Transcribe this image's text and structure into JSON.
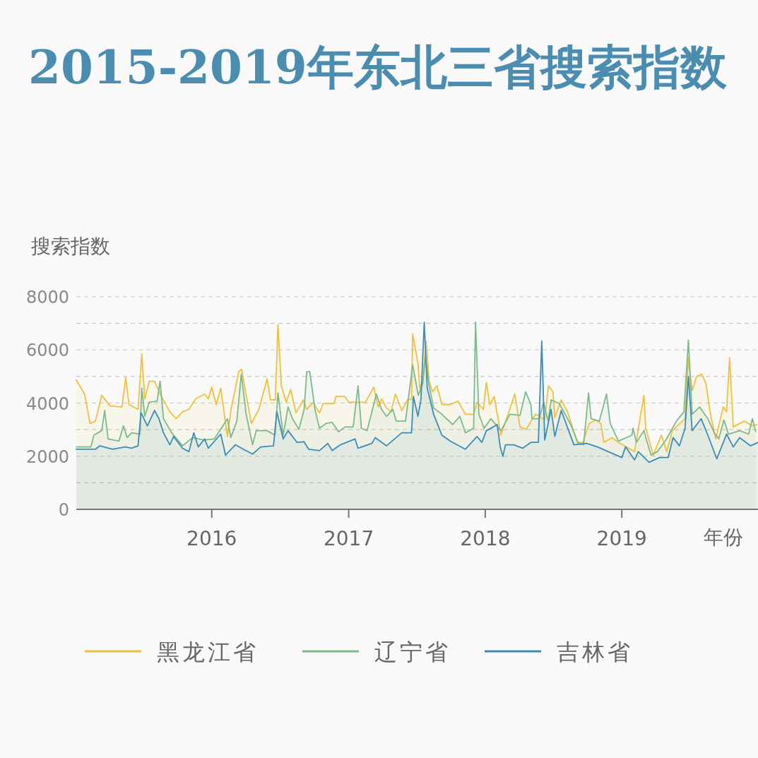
{
  "chart_data": {
    "type": "area",
    "title": "2015-2019年东北三省搜索指数",
    "xlabel": "年份",
    "ylabel": "搜索指数",
    "xlim": [
      "2015-01-04",
      "2019-12-31"
    ],
    "ylim": [
      0,
      8000
    ],
    "xticks": [
      {
        "value": "2016-01-01",
        "label": "2016"
      },
      {
        "value": "2017-01-01",
        "label": "2017"
      },
      {
        "value": "2018-01-01",
        "label": "2018"
      },
      {
        "value": "2019-01-01",
        "label": "2019"
      }
    ],
    "yticks": [
      0,
      {
        "value": 1000,
        "label": null
      },
      2000,
      {
        "value": 3000,
        "label": null
      },
      4000,
      {
        "value": 5000,
        "label": null
      },
      6000,
      {
        "value": 7000,
        "label": null
      },
      8000
    ],
    "grid": "y",
    "legend": "bottom",
    "line_style": "solid",
    "series": [
      {
        "name": "黑龙江省",
        "color": "#f0c03c",
        "x": [
          "2015-01-04",
          "2015-01-26",
          "2015-02-10",
          "2015-02-24",
          "2015-03-13",
          "2015-04-04",
          "2015-05-06",
          "2015-05-16",
          "2015-05-25",
          "2015-06-18",
          "2015-06-28",
          "2015-07-06",
          "2015-07-18",
          "2015-08-01",
          "2015-08-18",
          "2015-09-11",
          "2015-09-28",
          "2015-10-15",
          "2015-11-01",
          "2015-11-19",
          "2015-12-13",
          "2015-12-23",
          "2016-01-01",
          "2016-01-13",
          "2016-01-25",
          "2016-02-12",
          "2016-02-21",
          "2016-03-13",
          "2016-03-21",
          "2016-04-02",
          "2016-04-16",
          "2016-05-06",
          "2016-05-28",
          "2016-06-06",
          "2016-06-19",
          "2016-06-26",
          "2016-07-05",
          "2016-07-18",
          "2016-07-30",
          "2016-08-13",
          "2016-09-02",
          "2016-09-11",
          "2016-09-28",
          "2016-10-15",
          "2016-10-25",
          "2016-11-23",
          "2016-11-28",
          "2016-12-22",
          "2017-01-01",
          "2017-02-15",
          "2017-03-09",
          "2017-03-21",
          "2017-03-30",
          "2017-04-12",
          "2017-04-24",
          "2017-05-06",
          "2017-05-23",
          "2017-06-09",
          "2017-06-18",
          "2017-06-21",
          "2017-07-05",
          "2017-07-10",
          "2017-07-18",
          "2017-07-27",
          "2017-08-04",
          "2017-08-13",
          "2017-08-25",
          "2017-09-07",
          "2017-09-29",
          "2017-10-20",
          "2017-11-09",
          "2017-12-01",
          "2017-12-10",
          "2017-12-27",
          "2018-01-04",
          "2018-01-13",
          "2018-01-25",
          "2018-02-12",
          "2018-03-01",
          "2018-03-21",
          "2018-04-04",
          "2018-04-21",
          "2018-05-03",
          "2018-05-16",
          "2018-06-09",
          "2018-06-19",
          "2018-07-01",
          "2018-07-06",
          "2018-07-23",
          "2018-08-09",
          "2018-09-04",
          "2018-09-19",
          "2018-10-06",
          "2018-10-23",
          "2018-11-06",
          "2018-11-14",
          "2018-12-06",
          "2018-12-23",
          "2019-02-04",
          "2019-03-01",
          "2019-03-06",
          "2019-03-26",
          "2019-04-17",
          "2019-05-01",
          "2019-05-16",
          "2019-06-19",
          "2019-06-28",
          "2019-07-08",
          "2019-07-20",
          "2019-08-03",
          "2019-08-14",
          "2019-08-26",
          "2019-09-09",
          "2019-09-29",
          "2019-10-08",
          "2019-10-16",
          "2019-10-26",
          "2019-11-24",
          "2019-12-16",
          "2019-12-28"
        ],
        "values": [
          4870,
          4340,
          3230,
          3320,
          4290,
          3890,
          3850,
          4960,
          3940,
          3760,
          5840,
          4160,
          4820,
          4820,
          4290,
          3670,
          3410,
          3670,
          3760,
          4160,
          4340,
          4160,
          4600,
          3940,
          4560,
          2740,
          3720,
          5180,
          5270,
          4290,
          3230,
          3760,
          4910,
          4120,
          4120,
          6950,
          4650,
          4030,
          4510,
          3630,
          4120,
          3760,
          4030,
          3630,
          3980,
          3980,
          4250,
          4250,
          4030,
          4030,
          4600,
          3850,
          4160,
          3810,
          3670,
          4340,
          3720,
          4160,
          4120,
          6590,
          5530,
          4560,
          4820,
          6330,
          4820,
          4420,
          4650,
          3940,
          3940,
          4070,
          3580,
          3580,
          4030,
          3760,
          4780,
          3940,
          4250,
          2790,
          3500,
          4340,
          3100,
          3010,
          3320,
          3580,
          3360,
          4650,
          4420,
          3450,
          4120,
          3670,
          2520,
          2520,
          3230,
          3360,
          3230,
          2520,
          2700,
          2520,
          2170,
          4290,
          3050,
          2040,
          2790,
          2170,
          2960,
          3410,
          5710,
          4470,
          5000,
          5090,
          4730,
          3580,
          2650,
          3850,
          3670,
          5710,
          3100,
          3320,
          3140,
          3190
        ]
      },
      {
        "name": "辽宁省",
        "color": "#7dba8a",
        "x": [
          "2015-01-04",
          "2015-02-12",
          "2015-02-20",
          "2015-03-13",
          "2015-03-21",
          "2015-03-30",
          "2015-04-28",
          "2015-05-10",
          "2015-05-20",
          "2015-06-01",
          "2015-06-23",
          "2015-06-28",
          "2015-07-06",
          "2015-07-18",
          "2015-08-08",
          "2015-08-16",
          "2015-08-25",
          "2015-09-16",
          "2015-10-15",
          "2015-11-11",
          "2015-12-10",
          "2016-01-08",
          "2016-02-12",
          "2016-02-21",
          "2016-03-08",
          "2016-03-20",
          "2016-04-02",
          "2016-04-19",
          "2016-04-29",
          "2016-05-28",
          "2016-06-18",
          "2016-06-26",
          "2016-07-10",
          "2016-07-23",
          "2016-08-04",
          "2016-08-21",
          "2016-09-04",
          "2016-09-11",
          "2016-09-19",
          "2016-10-03",
          "2016-10-15",
          "2016-11-01",
          "2016-11-18",
          "2016-12-05",
          "2016-12-22",
          "2017-01-13",
          "2017-01-26",
          "2017-02-04",
          "2017-02-19",
          "2017-03-04",
          "2017-03-16",
          "2017-03-30",
          "2017-04-12",
          "2017-04-29",
          "2017-05-08",
          "2017-06-02",
          "2017-06-21",
          "2017-07-06",
          "2017-07-18",
          "2017-07-25",
          "2017-08-04",
          "2017-08-16",
          "2017-09-07",
          "2017-10-06",
          "2017-10-25",
          "2017-11-09",
          "2017-12-01",
          "2017-12-06",
          "2017-12-15",
          "2017-12-29",
          "2018-01-16",
          "2018-02-12",
          "2018-03-08",
          "2018-04-04",
          "2018-04-19",
          "2018-05-03",
          "2018-05-06",
          "2018-05-25",
          "2018-06-06",
          "2018-06-18",
          "2018-06-26",
          "2018-07-18",
          "2018-08-16",
          "2018-09-07",
          "2018-09-21",
          "2018-10-04",
          "2018-10-11",
          "2018-11-02",
          "2018-11-21",
          "2018-12-01",
          "2018-12-23",
          "2019-01-28",
          "2019-01-31",
          "2019-02-09",
          "2019-03-01",
          "2019-03-20",
          "2019-04-06",
          "2019-04-29",
          "2019-05-27",
          "2019-06-16",
          "2019-06-28",
          "2019-07-08",
          "2019-07-28",
          "2019-08-19",
          "2019-09-05",
          "2019-09-17",
          "2019-10-01",
          "2019-10-13",
          "2019-11-12",
          "2019-12-06",
          "2019-12-16",
          "2019-12-25"
        ],
        "values": [
          2350,
          2350,
          2790,
          2960,
          3720,
          2650,
          2570,
          3140,
          2700,
          2880,
          2830,
          4560,
          3500,
          4030,
          4070,
          4820,
          3410,
          2880,
          2390,
          2700,
          2610,
          2650,
          3410,
          2700,
          3320,
          5090,
          3580,
          2430,
          2960,
          2960,
          2790,
          4380,
          2790,
          3850,
          3410,
          3010,
          3760,
          5180,
          5180,
          3760,
          3050,
          3230,
          3270,
          2920,
          3100,
          3100,
          4650,
          3050,
          2960,
          3670,
          4340,
          3760,
          3500,
          3760,
          3320,
          3320,
          5440,
          4290,
          4730,
          5750,
          4650,
          3810,
          3580,
          3190,
          3500,
          2880,
          3050,
          7040,
          3580,
          3050,
          3410,
          2960,
          3580,
          3540,
          4420,
          3940,
          3410,
          3410,
          4030,
          3320,
          4120,
          3980,
          3230,
          2480,
          2430,
          4380,
          3410,
          3320,
          4340,
          3230,
          2570,
          2790,
          3050,
          2520,
          2960,
          2040,
          2170,
          2610,
          3320,
          3670,
          6370,
          3580,
          3850,
          3410,
          2880,
          2650,
          3360,
          2830,
          2960,
          2830,
          3410,
          2920
        ]
      },
      {
        "name": "吉林省",
        "color": "#3a8db8",
        "x": [
          "2015-01-04",
          "2015-02-24",
          "2015-03-08",
          "2015-04-11",
          "2015-05-15",
          "2015-06-01",
          "2015-06-18",
          "2015-06-26",
          "2015-07-13",
          "2015-08-01",
          "2015-08-13",
          "2015-08-25",
          "2015-09-11",
          "2015-09-21",
          "2015-10-15",
          "2015-11-01",
          "2015-11-14",
          "2015-11-26",
          "2015-12-13",
          "2015-12-23",
          "2016-01-25",
          "2016-02-07",
          "2016-03-04",
          "2016-03-26",
          "2016-04-19",
          "2016-05-11",
          "2016-06-14",
          "2016-06-23",
          "2016-07-10",
          "2016-07-23",
          "2016-08-16",
          "2016-09-04",
          "2016-09-16",
          "2016-10-15",
          "2016-11-06",
          "2016-11-18",
          "2016-12-10",
          "2017-01-18",
          "2017-01-26",
          "2017-03-04",
          "2017-03-13",
          "2017-04-12",
          "2017-05-23",
          "2017-06-18",
          "2017-06-23",
          "2017-07-05",
          "2017-07-13",
          "2017-07-22",
          "2017-07-30",
          "2017-08-16",
          "2017-09-07",
          "2017-09-29",
          "2017-11-09",
          "2017-12-10",
          "2017-12-23",
          "2018-01-04",
          "2018-02-02",
          "2018-02-10",
          "2018-02-17",
          "2018-02-24",
          "2018-03-18",
          "2018-04-11",
          "2018-05-03",
          "2018-05-23",
          "2018-06-01",
          "2018-06-09",
          "2018-06-26",
          "2018-07-06",
          "2018-07-23",
          "2018-08-26",
          "2018-09-29",
          "2018-10-28",
          "2018-11-26",
          "2019-01-01",
          "2019-01-11",
          "2019-02-04",
          "2019-02-14",
          "2019-03-15",
          "2019-04-12",
          "2019-05-05",
          "2019-05-18",
          "2019-06-04",
          "2019-06-19",
          "2019-06-28",
          "2019-07-08",
          "2019-08-01",
          "2019-08-19",
          "2019-09-12",
          "2019-10-08",
          "2019-10-26",
          "2019-11-12",
          "2019-12-11",
          "2019-12-31"
        ],
        "values": [
          2260,
          2260,
          2390,
          2260,
          2350,
          2300,
          2390,
          3630,
          3140,
          3720,
          3410,
          2880,
          2430,
          2740,
          2300,
          2170,
          2880,
          2350,
          2650,
          2300,
          2830,
          2040,
          2430,
          2260,
          2080,
          2350,
          2390,
          3670,
          2650,
          2960,
          2520,
          2540,
          2260,
          2210,
          2480,
          2210,
          2430,
          2650,
          2300,
          2480,
          2700,
          2390,
          2880,
          2880,
          4250,
          3500,
          4120,
          7040,
          4560,
          3580,
          2790,
          2570,
          2260,
          2740,
          2520,
          2960,
          3190,
          2350,
          1990,
          2430,
          2430,
          2300,
          2520,
          2520,
          6330,
          2610,
          3760,
          2740,
          3720,
          2430,
          2480,
          2350,
          2170,
          1950,
          2350,
          1860,
          2170,
          1770,
          1950,
          1950,
          2700,
          2390,
          3050,
          5000,
          2960,
          3410,
          2790,
          1900,
          2830,
          2350,
          2700,
          2390,
          2520
        ]
      }
    ]
  }
}
